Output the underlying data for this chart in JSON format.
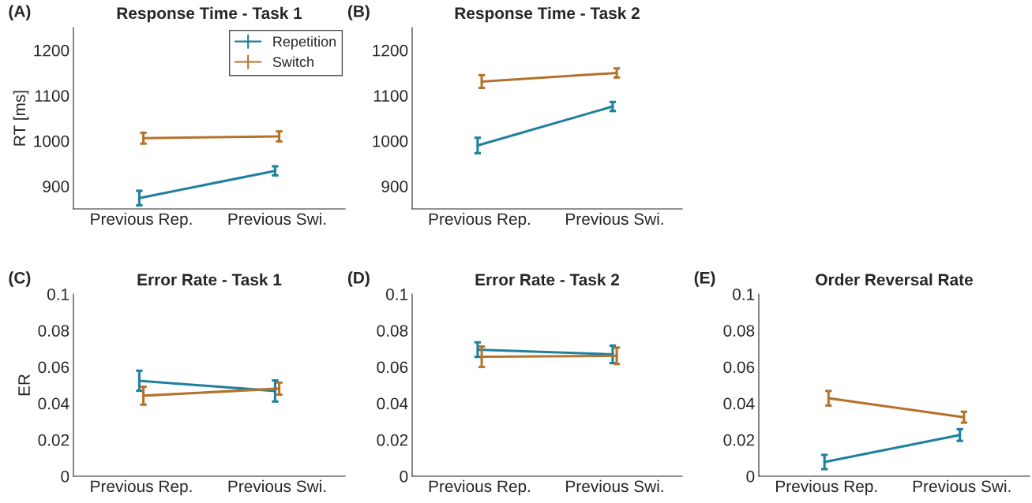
{
  "chart_data": [
    {
      "type": "line",
      "title": "Response Time - Task 1",
      "ylabel": "RT [ms]",
      "annotations": [
        "(A)"
      ],
      "categories": [
        "Previous Rep.",
        "Previous Swi."
      ],
      "ylim": [
        850,
        1250
      ],
      "yticks": [
        900,
        1000,
        1100,
        1200
      ],
      "legend": "top right",
      "grid": false,
      "series": [
        {
          "name": "Repetition",
          "color": "#1f7f9e",
          "values": [
            874,
            934
          ],
          "errors": [
            16,
            10
          ]
        },
        {
          "name": "Switch",
          "color": "#b4722c",
          "values": [
            1006,
            1010
          ],
          "errors": [
            12,
            11
          ]
        }
      ]
    },
    {
      "type": "line",
      "title": "Response Time - Task 2",
      "annotations": [
        "(B)"
      ],
      "categories": [
        "Previous Rep.",
        "Previous Swi."
      ],
      "ylim": [
        850,
        1250
      ],
      "yticks": [
        900,
        1000,
        1100,
        1200
      ],
      "grid": false,
      "series": [
        {
          "color": "#1f7f9e",
          "values": [
            990,
            1076
          ],
          "errors": [
            17,
            10
          ]
        },
        {
          "color": "#b4722c",
          "values": [
            1131,
            1150
          ],
          "errors": [
            14,
            10
          ]
        }
      ]
    },
    {
      "type": "line",
      "title": "Error Rate - Task 1",
      "ylabel": "ER",
      "annotations": [
        "(C)"
      ],
      "categories": [
        "Previous Rep.",
        "Previous Swi."
      ],
      "ylim": [
        0,
        0.1
      ],
      "yticks": [
        0,
        0.02,
        0.04,
        0.06,
        0.08,
        0.1
      ],
      "grid": false,
      "series": [
        {
          "color": "#1f7f9e",
          "values": [
            0.0524,
            0.0468
          ],
          "errors": [
            0.0055,
            0.0058
          ]
        },
        {
          "color": "#b4722c",
          "values": [
            0.0442,
            0.0481
          ],
          "errors": [
            0.0049,
            0.0033
          ]
        }
      ]
    },
    {
      "type": "line",
      "title": "Error Rate - Task 2",
      "annotations": [
        "(D)"
      ],
      "categories": [
        "Previous Rep.",
        "Previous Swi."
      ],
      "ylim": [
        0,
        0.1
      ],
      "yticks": [
        0,
        0.02,
        0.04,
        0.06,
        0.08,
        0.1
      ],
      "grid": false,
      "series": [
        {
          "color": "#1f7f9e",
          "values": [
            0.0695,
            0.0669
          ],
          "errors": [
            0.004,
            0.0048
          ]
        },
        {
          "color": "#b4722c",
          "values": [
            0.0656,
            0.0661
          ],
          "errors": [
            0.0056,
            0.0045
          ]
        }
      ]
    },
    {
      "type": "line",
      "title": "Order Reversal Rate",
      "annotations": [
        "(E)"
      ],
      "categories": [
        "Previous Rep.",
        "Previous Swi."
      ],
      "ylim": [
        0,
        0.1
      ],
      "yticks": [
        0,
        0.02,
        0.04,
        0.06,
        0.08,
        0.1
      ],
      "grid": false,
      "series": [
        {
          "color": "#1f7f9e",
          "values": [
            0.0078,
            0.0226
          ],
          "errors": [
            0.0039,
            0.0032
          ]
        },
        {
          "color": "#b4722c",
          "values": [
            0.0428,
            0.0324
          ],
          "errors": [
            0.004,
            0.003
          ]
        }
      ]
    }
  ]
}
